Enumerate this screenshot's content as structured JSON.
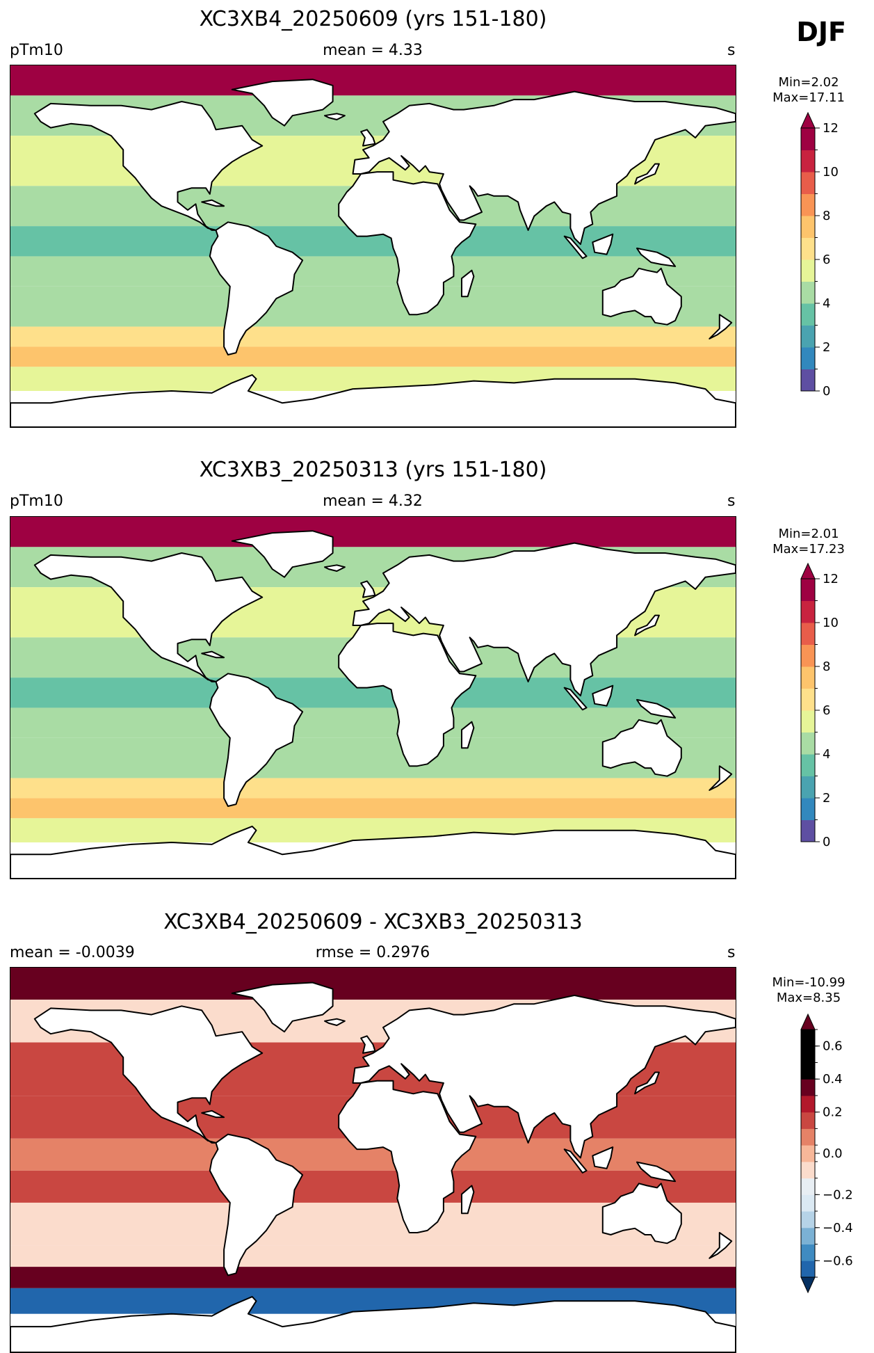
{
  "season_label": "DJF",
  "colors": {
    "spectral_r": [
      "#5e4fa2",
      "#3288bd",
      "#4aa3b0",
      "#66c2a5",
      "#a9dca4",
      "#e6f598",
      "#fee08b",
      "#fdc46c",
      "#f99455",
      "#e85d4a",
      "#c8233f",
      "#9e0142"
    ],
    "rdbu_r": [
      "#053061",
      "#2166ac",
      "#3f8bc1",
      "#7bb1d4",
      "#b6d3e7",
      "#dbe9f3",
      "#e8eef3",
      "#fbdccc",
      "#f7b799",
      "#e58267",
      "#c94741",
      "#b2182b",
      "#67001f"
    ],
    "coast": "#000000",
    "land": "#ffffff"
  },
  "panels": [
    {
      "title": "XC3XB4_20250609 (yrs 151-180)",
      "left_label": "pTm10",
      "center_label": "mean = 4.33",
      "right_label": "s",
      "minmax": "Min=2.02\nMax=17.11"
    },
    {
      "title": "XC3XB3_20250313 (yrs 151-180)",
      "left_label": "pTm10",
      "center_label": "mean = 4.32",
      "right_label": "s",
      "minmax": "Min=2.01\nMax=17.23"
    },
    {
      "title": "XC3XB4_20250609 - XC3XB3_20250313",
      "left_label": "mean = -0.0039",
      "center_label": "rmse = 0.2976",
      "right_label": "s",
      "minmax": "Min=-10.99\nMax=8.35"
    }
  ],
  "chart_data": [
    {
      "type": "heatmap",
      "title": "XC3XB4_20250609 (yrs 151-180)",
      "variable": "pTm10",
      "units": "s",
      "mean": 4.33,
      "min": 2.02,
      "max": 17.11,
      "colorbar": {
        "boundaries": [
          0,
          1,
          2,
          3,
          4,
          5,
          6,
          7,
          8,
          9,
          10,
          11,
          12
        ],
        "tick_labels": [
          "0",
          "2",
          "4",
          "6",
          "8",
          "10",
          "12"
        ],
        "extend": "max"
      },
      "bands": [
        {
          "lat_range": [
            75,
            90
          ],
          "value": 11
        },
        {
          "lat_range": [
            55,
            75
          ],
          "value": 4.5
        },
        {
          "lat_range": [
            30,
            55
          ],
          "value": 5.5
        },
        {
          "lat_range": [
            10,
            30
          ],
          "value": 4.5
        },
        {
          "lat_range": [
            -5,
            10
          ],
          "value": 3.5
        },
        {
          "lat_range": [
            -20,
            -5
          ],
          "value": 4.5
        },
        {
          "lat_range": [
            -40,
            -20
          ],
          "value": 4.5
        },
        {
          "lat_range": [
            -50,
            -40
          ],
          "value": 6.5
        },
        {
          "lat_range": [
            -60,
            -50
          ],
          "value": 7.5
        },
        {
          "lat_range": [
            -72,
            -60
          ],
          "value": 5.5
        }
      ]
    },
    {
      "type": "heatmap",
      "title": "XC3XB3_20250313 (yrs 151-180)",
      "variable": "pTm10",
      "units": "s",
      "mean": 4.32,
      "min": 2.01,
      "max": 17.23,
      "colorbar": {
        "boundaries": [
          0,
          1,
          2,
          3,
          4,
          5,
          6,
          7,
          8,
          9,
          10,
          11,
          12
        ],
        "tick_labels": [
          "0",
          "2",
          "4",
          "6",
          "8",
          "10",
          "12"
        ],
        "extend": "max"
      },
      "bands": [
        {
          "lat_range": [
            75,
            90
          ],
          "value": 11
        },
        {
          "lat_range": [
            55,
            75
          ],
          "value": 4.5
        },
        {
          "lat_range": [
            30,
            55
          ],
          "value": 5.5
        },
        {
          "lat_range": [
            10,
            30
          ],
          "value": 4.5
        },
        {
          "lat_range": [
            -5,
            10
          ],
          "value": 3.5
        },
        {
          "lat_range": [
            -20,
            -5
          ],
          "value": 4.5
        },
        {
          "lat_range": [
            -40,
            -20
          ],
          "value": 4.5
        },
        {
          "lat_range": [
            -50,
            -40
          ],
          "value": 6.5
        },
        {
          "lat_range": [
            -60,
            -50
          ],
          "value": 7.5
        },
        {
          "lat_range": [
            -72,
            -60
          ],
          "value": 5.5
        }
      ]
    },
    {
      "type": "heatmap",
      "title": "XC3XB4_20250609 - XC3XB3_20250313",
      "units": "s",
      "mean": -0.0039,
      "rmse": 0.2976,
      "min": -10.99,
      "max": 8.35,
      "colorbar": {
        "boundaries": [
          -0.7,
          -0.6,
          -0.5,
          -0.4,
          -0.3,
          -0.2,
          -0.1,
          -0.01,
          0.01,
          0.1,
          0.2,
          0.3,
          0.4,
          0.5,
          0.6,
          0.7
        ],
        "tick_labels": [
          "−0.6",
          "−0.4",
          "−0.2",
          "0.0",
          "0.2",
          "0.4",
          "0.6"
        ],
        "extend": "both"
      },
      "bands": [
        {
          "lat_range": [
            75,
            90
          ],
          "value": 0.7
        },
        {
          "lat_range": [
            55,
            75
          ],
          "value": -0.05
        },
        {
          "lat_range": [
            30,
            55
          ],
          "value": 0.15
        },
        {
          "lat_range": [
            10,
            30
          ],
          "value": 0.15
        },
        {
          "lat_range": [
            -5,
            10
          ],
          "value": 0.05
        },
        {
          "lat_range": [
            -20,
            -5
          ],
          "value": 0.15
        },
        {
          "lat_range": [
            -40,
            -20
          ],
          "value": -0.05
        },
        {
          "lat_range": [
            -50,
            -40
          ],
          "value": -0.05
        },
        {
          "lat_range": [
            -60,
            -50
          ],
          "value": 0.7
        },
        {
          "lat_range": [
            -72,
            -60
          ],
          "value": -0.7
        }
      ]
    }
  ]
}
